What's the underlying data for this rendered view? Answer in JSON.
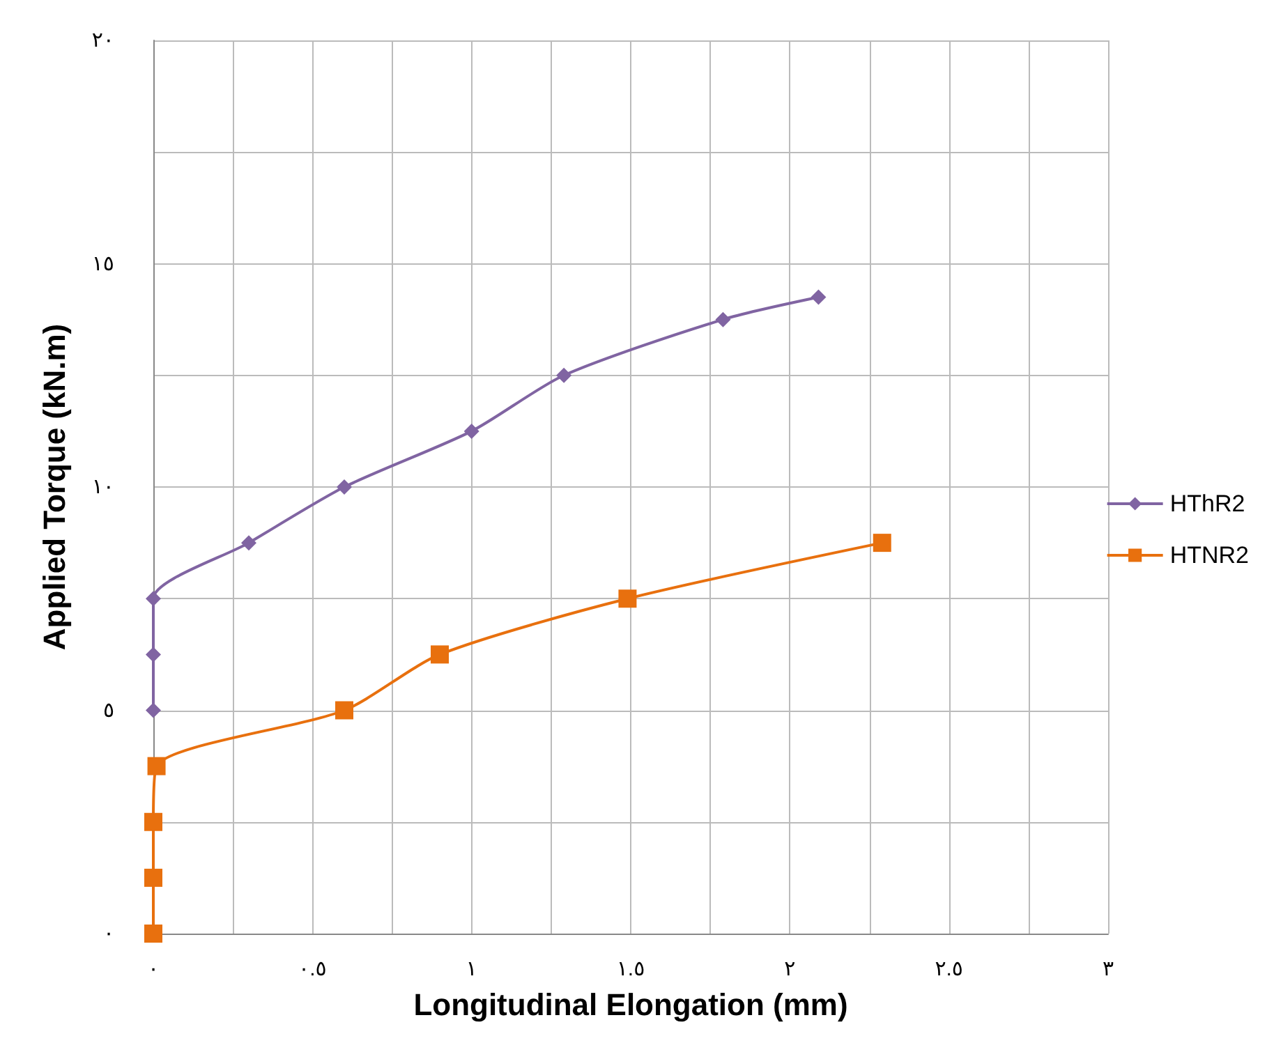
{
  "chart_data": {
    "type": "line",
    "xlabel": "Longitudinal Elongation (mm)",
    "ylabel": "Applied Torque (kN.m)",
    "xlim": [
      0,
      3
    ],
    "ylim": [
      0,
      20
    ],
    "xticks": [
      {
        "value": 0,
        "label": "٠"
      },
      {
        "value": 0.25,
        "label": null
      },
      {
        "value": 0.5,
        "label": "٠.٥"
      },
      {
        "value": 0.75,
        "label": null
      },
      {
        "value": 1,
        "label": "١"
      },
      {
        "value": 1.25,
        "label": null
      },
      {
        "value": 1.5,
        "label": "١.٥"
      },
      {
        "value": 1.75,
        "label": null
      },
      {
        "value": 2,
        "label": "٢"
      },
      {
        "value": 2.25,
        "label": null
      },
      {
        "value": 2.5,
        "label": "٢.٥"
      },
      {
        "value": 2.75,
        "label": null
      },
      {
        "value": 3,
        "label": "٣"
      }
    ],
    "yticks": [
      {
        "value": 0,
        "label": "٠"
      },
      {
        "value": 2.5,
        "label": null
      },
      {
        "value": 5,
        "label": "٥"
      },
      {
        "value": 7.5,
        "label": null
      },
      {
        "value": 10,
        "label": "١٠"
      },
      {
        "value": 12.5,
        "label": null
      },
      {
        "value": 15,
        "label": "١٥"
      },
      {
        "value": 17.5,
        "label": null
      },
      {
        "value": 20,
        "label": "٢٠"
      }
    ],
    "grid": true,
    "legend": "right",
    "line_style": "solid",
    "series": [
      {
        "name": "HThR2",
        "color": "#8064a2",
        "marker": "diamond",
        "x": [
          0,
          0,
          0,
          0.3,
          0.6,
          1.0,
          1.29,
          1.79,
          2.09
        ],
        "values": [
          5,
          6.25,
          7.5,
          8.75,
          10,
          11.25,
          12.5,
          13.75,
          14.25
        ]
      },
      {
        "name": "HTNR2",
        "color": "#e8700e",
        "marker": "square",
        "x": [
          0,
          0,
          0,
          0.01,
          0.6,
          0.9,
          1.49,
          2.29
        ],
        "values": [
          0,
          1.25,
          2.5,
          3.75,
          5,
          6.25,
          7.5,
          8.75
        ]
      }
    ]
  }
}
